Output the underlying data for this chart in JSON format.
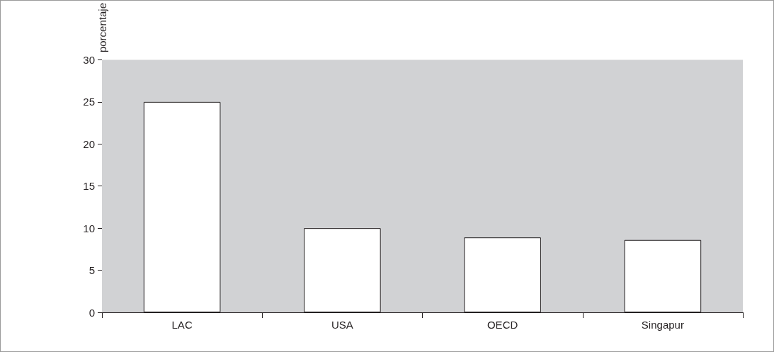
{
  "chart_data": {
    "type": "bar",
    "ylabel": "porcentaje",
    "categories": [
      "LAC",
      "USA",
      "OECD",
      "Singapur"
    ],
    "values": [
      25.0,
      10.0,
      8.9,
      8.6
    ],
    "color": "#ffffff",
    "ylim": [
      0,
      30
    ],
    "yticks": [
      0,
      5,
      10,
      15,
      20,
      25,
      30
    ],
    "grid": false
  }
}
